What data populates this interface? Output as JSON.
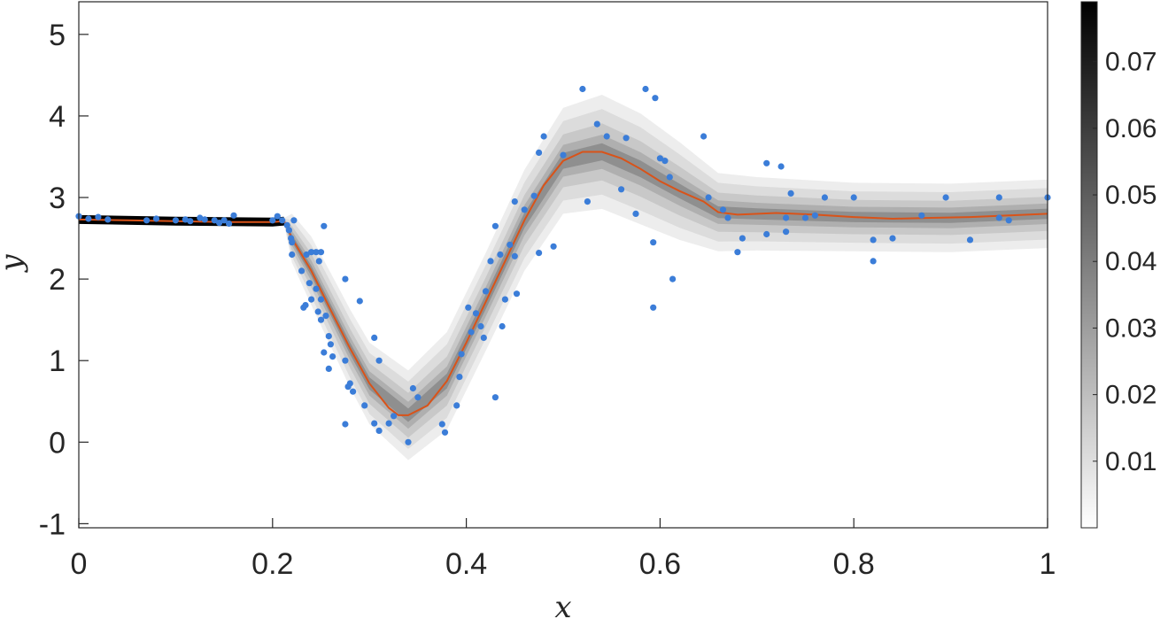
{
  "chart_data": {
    "type": "scatter",
    "xlabel": "x",
    "ylabel": "y",
    "xlim": [
      0,
      1
    ],
    "ylim": [
      -1.05,
      5.4
    ],
    "x_ticks": [
      0,
      0.2,
      0.4,
      0.6,
      0.8,
      1
    ],
    "x_tick_labels": [
      "0",
      "0.2",
      "0.4",
      "0.6",
      "0.8",
      "1"
    ],
    "y_ticks": [
      -1,
      0,
      1,
      2,
      3,
      4,
      5
    ],
    "y_tick_labels": [
      "-1",
      "0",
      "1",
      "2",
      "3",
      "4",
      "5"
    ],
    "grid": false,
    "points_color": "#3b7dd8",
    "curve_color": "#d95319",
    "points": [
      [
        0.0,
        2.77
      ],
      [
        0.01,
        2.74
      ],
      [
        0.02,
        2.76
      ],
      [
        0.03,
        2.73
      ],
      [
        0.07,
        2.72
      ],
      [
        0.08,
        2.74
      ],
      [
        0.1,
        2.72
      ],
      [
        0.11,
        2.73
      ],
      [
        0.115,
        2.71
      ],
      [
        0.125,
        2.75
      ],
      [
        0.13,
        2.73
      ],
      [
        0.14,
        2.72
      ],
      [
        0.145,
        2.69
      ],
      [
        0.15,
        2.72
      ],
      [
        0.155,
        2.68
      ],
      [
        0.16,
        2.78
      ],
      [
        0.2,
        2.72
      ],
      [
        0.205,
        2.77
      ],
      [
        0.21,
        2.72
      ],
      [
        0.215,
        2.66
      ],
      [
        0.217,
        2.6
      ],
      [
        0.219,
        2.5
      ],
      [
        0.22,
        2.45
      ],
      [
        0.222,
        2.72
      ],
      [
        0.22,
        2.3
      ],
      [
        0.23,
        2.1
      ],
      [
        0.235,
        2.3
      ],
      [
        0.24,
        2.33
      ],
      [
        0.245,
        2.33
      ],
      [
        0.25,
        2.33
      ],
      [
        0.248,
        2.22
      ],
      [
        0.253,
        2.65
      ],
      [
        0.232,
        1.65
      ],
      [
        0.234,
        1.68
      ],
      [
        0.238,
        1.95
      ],
      [
        0.24,
        1.75
      ],
      [
        0.245,
        1.88
      ],
      [
        0.25,
        1.75
      ],
      [
        0.247,
        1.6
      ],
      [
        0.255,
        1.55
      ],
      [
        0.25,
        1.5
      ],
      [
        0.258,
        1.3
      ],
      [
        0.26,
        1.2
      ],
      [
        0.253,
        1.1
      ],
      [
        0.262,
        1.05
      ],
      [
        0.258,
        0.9
      ],
      [
        0.275,
        2.0
      ],
      [
        0.275,
        1.0
      ],
      [
        0.28,
        0.72
      ],
      [
        0.278,
        0.68
      ],
      [
        0.283,
        0.62
      ],
      [
        0.275,
        0.22
      ],
      [
        0.29,
        1.73
      ],
      [
        0.295,
        0.45
      ],
      [
        0.305,
        1.28
      ],
      [
        0.305,
        0.23
      ],
      [
        0.31,
        1.0
      ],
      [
        0.31,
        0.14
      ],
      [
        0.32,
        0.23
      ],
      [
        0.325,
        0.32
      ],
      [
        0.34,
        0.0
      ],
      [
        0.345,
        0.66
      ],
      [
        0.35,
        0.55
      ],
      [
        0.375,
        0.22
      ],
      [
        0.378,
        0.12
      ],
      [
        0.39,
        0.45
      ],
      [
        0.393,
        0.8
      ],
      [
        0.395,
        1.08
      ],
      [
        0.402,
        1.65
      ],
      [
        0.405,
        1.35
      ],
      [
        0.41,
        1.58
      ],
      [
        0.415,
        1.42
      ],
      [
        0.418,
        1.28
      ],
      [
        0.42,
        1.85
      ],
      [
        0.425,
        2.22
      ],
      [
        0.43,
        2.65
      ],
      [
        0.43,
        0.55
      ],
      [
        0.435,
        2.3
      ],
      [
        0.437,
        1.42
      ],
      [
        0.44,
        1.75
      ],
      [
        0.445,
        2.42
      ],
      [
        0.45,
        2.28
      ],
      [
        0.452,
        1.82
      ],
      [
        0.45,
        2.95
      ],
      [
        0.46,
        2.85
      ],
      [
        0.47,
        3.02
      ],
      [
        0.475,
        2.32
      ],
      [
        0.475,
        3.55
      ],
      [
        0.48,
        3.75
      ],
      [
        0.49,
        2.4
      ],
      [
        0.5,
        3.52
      ],
      [
        0.52,
        4.33
      ],
      [
        0.525,
        2.95
      ],
      [
        0.535,
        3.9
      ],
      [
        0.545,
        3.75
      ],
      [
        0.56,
        3.1
      ],
      [
        0.565,
        3.73
      ],
      [
        0.575,
        2.8
      ],
      [
        0.585,
        4.33
      ],
      [
        0.595,
        4.22
      ],
      [
        0.593,
        2.45
      ],
      [
        0.593,
        1.65
      ],
      [
        0.6,
        3.48
      ],
      [
        0.605,
        3.45
      ],
      [
        0.61,
        3.25
      ],
      [
        0.613,
        2.0
      ],
      [
        0.645,
        3.75
      ],
      [
        0.65,
        3.0
      ],
      [
        0.665,
        2.85
      ],
      [
        0.67,
        2.75
      ],
      [
        0.68,
        2.33
      ],
      [
        0.685,
        2.5
      ],
      [
        0.71,
        3.42
      ],
      [
        0.71,
        2.55
      ],
      [
        0.725,
        3.38
      ],
      [
        0.73,
        2.75
      ],
      [
        0.73,
        2.58
      ],
      [
        0.735,
        3.05
      ],
      [
        0.75,
        2.75
      ],
      [
        0.76,
        2.78
      ],
      [
        0.77,
        3.0
      ],
      [
        0.8,
        3.0
      ],
      [
        0.82,
        2.48
      ],
      [
        0.82,
        2.22
      ],
      [
        0.84,
        2.5
      ],
      [
        0.87,
        2.78
      ],
      [
        0.895,
        3.0
      ],
      [
        0.92,
        2.48
      ],
      [
        0.95,
        3.0
      ],
      [
        0.95,
        2.75
      ],
      [
        0.96,
        2.72
      ],
      [
        1.0,
        3.0
      ]
    ],
    "curve": [
      [
        0.0,
        2.73
      ],
      [
        0.05,
        2.72
      ],
      [
        0.1,
        2.71
      ],
      [
        0.15,
        2.7
      ],
      [
        0.2,
        2.7
      ],
      [
        0.212,
        2.71
      ],
      [
        0.22,
        2.5
      ],
      [
        0.24,
        2.1
      ],
      [
        0.26,
        1.62
      ],
      [
        0.28,
        1.15
      ],
      [
        0.3,
        0.72
      ],
      [
        0.32,
        0.42
      ],
      [
        0.33,
        0.33
      ],
      [
        0.34,
        0.33
      ],
      [
        0.36,
        0.45
      ],
      [
        0.38,
        0.75
      ],
      [
        0.4,
        1.22
      ],
      [
        0.42,
        1.72
      ],
      [
        0.44,
        2.22
      ],
      [
        0.46,
        2.72
      ],
      [
        0.48,
        3.15
      ],
      [
        0.5,
        3.45
      ],
      [
        0.52,
        3.56
      ],
      [
        0.54,
        3.56
      ],
      [
        0.56,
        3.48
      ],
      [
        0.58,
        3.35
      ],
      [
        0.6,
        3.2
      ],
      [
        0.62,
        3.08
      ],
      [
        0.645,
        2.95
      ],
      [
        0.66,
        2.82
      ],
      [
        0.68,
        2.79
      ],
      [
        0.72,
        2.81
      ],
      [
        0.76,
        2.79
      ],
      [
        0.8,
        2.76
      ],
      [
        0.82,
        2.75
      ],
      [
        0.84,
        2.74
      ],
      [
        0.88,
        2.75
      ],
      [
        0.92,
        2.76
      ],
      [
        0.96,
        2.78
      ],
      [
        1.0,
        2.8
      ]
    ],
    "density_band": [
      [
        0.0,
        2.73,
        0.02
      ],
      [
        0.1,
        2.71,
        0.02
      ],
      [
        0.2,
        2.7,
        0.02
      ],
      [
        0.212,
        2.71,
        0.04
      ],
      [
        0.22,
        2.5,
        0.3
      ],
      [
        0.24,
        2.1,
        0.42
      ],
      [
        0.28,
        1.15,
        0.48
      ],
      [
        0.3,
        0.72,
        0.5
      ],
      [
        0.34,
        0.33,
        0.55
      ],
      [
        0.38,
        0.75,
        0.6
      ],
      [
        0.42,
        1.72,
        0.6
      ],
      [
        0.46,
        2.72,
        0.62
      ],
      [
        0.5,
        3.45,
        0.65
      ],
      [
        0.54,
        3.56,
        0.7
      ],
      [
        0.58,
        3.35,
        0.68
      ],
      [
        0.62,
        3.08,
        0.6
      ],
      [
        0.66,
        2.82,
        0.48
      ],
      [
        0.7,
        2.8,
        0.45
      ],
      [
        0.8,
        2.76,
        0.42
      ],
      [
        0.9,
        2.75,
        0.42
      ],
      [
        1.0,
        2.8,
        0.42
      ]
    ],
    "colorbar": {
      "min": 0.0,
      "max": 0.079,
      "ticks": [
        "0.01",
        "0.02",
        "0.03",
        "0.04",
        "0.05",
        "0.06",
        "0.07"
      ]
    }
  }
}
